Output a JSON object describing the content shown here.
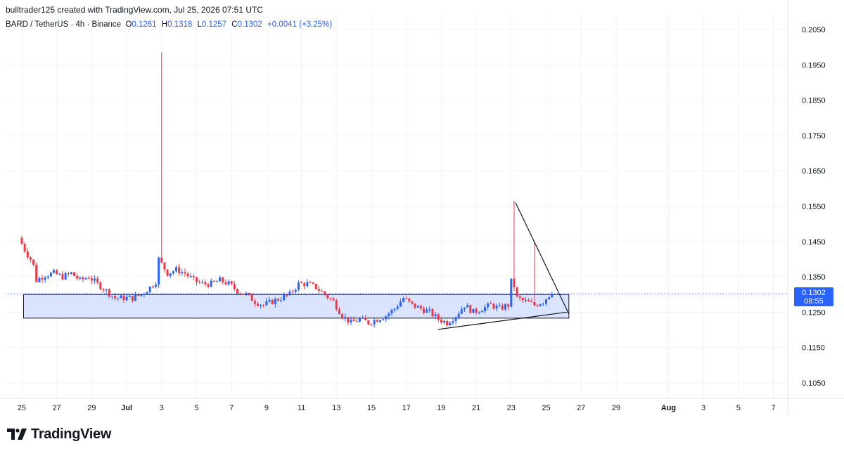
{
  "header": {
    "created_by": "bulltrader125 created with TradingView.com, Jul 25, 2026 07:51 UTC"
  },
  "legend": {
    "symbol": "BARD / TetherUS · 4h · Binance",
    "open_key": "O",
    "open": "0.1261",
    "high_key": "H",
    "high": "0.1318",
    "low_key": "L",
    "low": "0.1257",
    "close_key": "C",
    "close": "0.1302",
    "change": "+0.0041 (+3.25%)"
  },
  "price_badge": {
    "price": "0.1302",
    "countdown": "08:55"
  },
  "brand": {
    "name": "TradingView"
  },
  "colors": {
    "up": "#2962ff",
    "down": "#f23645",
    "zone_fill": "#dbe4ff",
    "line": "#131722"
  },
  "chart_data": {
    "type": "candlestick",
    "title": "BARD / TetherUS · 4h · Binance",
    "y_ticks": [
      "0.2050",
      "0.1950",
      "0.1850",
      "0.1750",
      "0.1650",
      "0.1550",
      "0.1450",
      "0.1350",
      "0.1250",
      "0.1150",
      "0.1050"
    ],
    "ylim": [
      0.1006,
      0.209
    ],
    "x_ticks": [
      {
        "label": "25",
        "day": 0
      },
      {
        "label": "27",
        "day": 2
      },
      {
        "label": "29",
        "day": 4
      },
      {
        "label": "Jul",
        "day": 6,
        "bold": true
      },
      {
        "label": "3",
        "day": 8
      },
      {
        "label": "5",
        "day": 10
      },
      {
        "label": "7",
        "day": 12
      },
      {
        "label": "9",
        "day": 14
      },
      {
        "label": "11",
        "day": 16
      },
      {
        "label": "13",
        "day": 18
      },
      {
        "label": "15",
        "day": 20
      },
      {
        "label": "17",
        "day": 22
      },
      {
        "label": "19",
        "day": 24
      },
      {
        "label": "21",
        "day": 26
      },
      {
        "label": "23",
        "day": 28
      },
      {
        "label": "25",
        "day": 30
      },
      {
        "label": "27",
        "day": 32
      },
      {
        "label": "29",
        "day": 34
      },
      {
        "label": "Aug",
        "day": 37,
        "bold": true
      },
      {
        "label": "3",
        "day": 39
      },
      {
        "label": "5",
        "day": 41
      },
      {
        "label": "7",
        "day": 43
      }
    ],
    "last_price": 0.1302,
    "price_anchors": [
      [
        0,
        0.146
      ],
      [
        0.4,
        0.142
      ],
      [
        0.8,
        0.139
      ],
      [
        1.0,
        0.134
      ],
      [
        1.5,
        0.1355
      ],
      [
        2.0,
        0.136
      ],
      [
        2.5,
        0.135
      ],
      [
        3.0,
        0.136
      ],
      [
        3.5,
        0.134
      ],
      [
        4.0,
        0.135
      ],
      [
        4.5,
        0.133
      ],
      [
        5.0,
        0.131
      ],
      [
        5.5,
        0.129
      ],
      [
        6.0,
        0.129
      ],
      [
        6.5,
        0.129
      ],
      [
        7.0,
        0.13
      ],
      [
        7.5,
        0.132
      ],
      [
        7.9,
        0.134
      ],
      [
        8.0,
        0.14
      ],
      [
        8.5,
        0.136
      ],
      [
        9.0,
        0.137
      ],
      [
        9.5,
        0.136
      ],
      [
        10.0,
        0.134
      ],
      [
        10.5,
        0.133
      ],
      [
        11.0,
        0.133
      ],
      [
        11.5,
        0.134
      ],
      [
        12.0,
        0.133
      ],
      [
        12.5,
        0.131
      ],
      [
        13.0,
        0.13
      ],
      [
        13.5,
        0.128
      ],
      [
        14.0,
        0.127
      ],
      [
        14.5,
        0.128
      ],
      [
        15.0,
        0.129
      ],
      [
        15.5,
        0.13
      ],
      [
        16.0,
        0.133
      ],
      [
        16.5,
        0.133
      ],
      [
        17.0,
        0.132
      ],
      [
        17.5,
        0.13
      ],
      [
        18.0,
        0.128
      ],
      [
        18.5,
        0.124
      ],
      [
        19.0,
        0.122
      ],
      [
        19.5,
        0.123
      ],
      [
        20.0,
        0.122
      ],
      [
        20.5,
        0.123
      ],
      [
        21.0,
        0.124
      ],
      [
        21.5,
        0.126
      ],
      [
        22.0,
        0.129
      ],
      [
        22.5,
        0.127
      ],
      [
        23.0,
        0.126
      ],
      [
        23.5,
        0.125
      ],
      [
        24.0,
        0.123
      ],
      [
        24.5,
        0.122
      ],
      [
        25.0,
        0.124
      ],
      [
        25.5,
        0.127
      ],
      [
        26.0,
        0.125
      ],
      [
        26.5,
        0.126
      ],
      [
        27.0,
        0.127
      ],
      [
        27.5,
        0.126
      ],
      [
        28.0,
        0.127
      ],
      [
        28.2,
        0.135
      ],
      [
        28.5,
        0.129
      ],
      [
        29.0,
        0.128
      ],
      [
        29.5,
        0.127
      ],
      [
        30.0,
        0.128
      ],
      [
        30.4,
        0.1302
      ]
    ],
    "spikes": [
      {
        "day": 7.97,
        "high": 0.1985
      },
      {
        "day": 28.25,
        "high": 0.1565
      },
      {
        "day": 29.3,
        "high": 0.145
      }
    ],
    "consolidation_zone": {
      "x0": 0.1,
      "x1": 31.3,
      "top": 0.13,
      "bottom": 0.1233
    },
    "support_line": {
      "x0": 23.8,
      "y0": 0.1201,
      "x1": 31.2,
      "y1": 0.125
    },
    "resistance_line": {
      "x0": 28.25,
      "y0": 0.156,
      "x1": 31.3,
      "y1": 0.1245
    }
  }
}
